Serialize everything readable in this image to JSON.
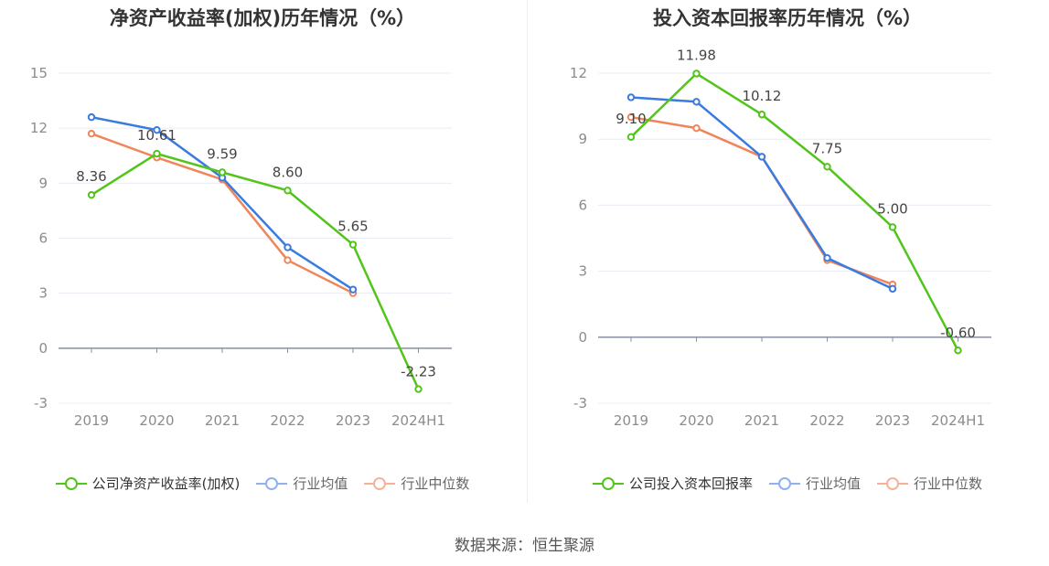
{
  "charts": [
    {
      "title": "净资产收益率(加权)历年情况（%）",
      "legend": [
        "公司净资产收益率(加权)",
        "行业均值",
        "行业中位数"
      ]
    },
    {
      "title": "投入资本回报率历年情况（%）",
      "legend": [
        "公司投入资本回报率",
        "行业均值",
        "行业中位数"
      ]
    }
  ],
  "source": "数据来源：恒生聚源",
  "colors": {
    "company": "#52c41a",
    "avg": "#3a7be0",
    "median": "#f0855a",
    "axis": "#8a8fa3",
    "grid": "#e9ecf4",
    "tick": "#8c8c8c"
  },
  "chart_data": [
    {
      "type": "line",
      "title": "净资产收益率(加权)历年情况（%）",
      "categories": [
        "2019",
        "2020",
        "2021",
        "2022",
        "2023",
        "2024H1"
      ],
      "ylim": [
        -3,
        15
      ],
      "yticks": [
        -3,
        0,
        3,
        6,
        9,
        12,
        15
      ],
      "grid": true,
      "legend_position": "bottom",
      "series": [
        {
          "name": "公司净资产收益率(加权)",
          "values": [
            8.36,
            10.61,
            9.59,
            8.6,
            5.65,
            -2.23
          ],
          "labels": [
            "8.36",
            "10.61",
            "9.59",
            "8.60",
            "5.65",
            "-2.23"
          ]
        },
        {
          "name": "行业均值",
          "values": [
            12.6,
            11.9,
            9.3,
            5.5,
            3.2,
            null
          ]
        },
        {
          "name": "行业中位数",
          "values": [
            11.7,
            10.4,
            9.2,
            4.8,
            3.0,
            null
          ]
        }
      ]
    },
    {
      "type": "line",
      "title": "投入资本回报率历年情况（%）",
      "categories": [
        "2019",
        "2020",
        "2021",
        "2022",
        "2023",
        "2024H1"
      ],
      "ylim": [
        -3,
        12
      ],
      "yticks": [
        -3,
        0,
        3,
        6,
        9,
        12
      ],
      "grid": true,
      "legend_position": "bottom",
      "series": [
        {
          "name": "公司投入资本回报率",
          "values": [
            9.1,
            11.98,
            10.12,
            7.75,
            5.0,
            -0.6
          ],
          "labels": [
            "9.10",
            "11.98",
            "10.12",
            "7.75",
            "5.00",
            "-0.60"
          ]
        },
        {
          "name": "行业均值",
          "values": [
            10.9,
            10.7,
            8.2,
            3.6,
            2.2,
            null
          ]
        },
        {
          "name": "行业中位数",
          "values": [
            10.0,
            9.5,
            8.2,
            3.5,
            2.4,
            null
          ]
        }
      ]
    }
  ]
}
